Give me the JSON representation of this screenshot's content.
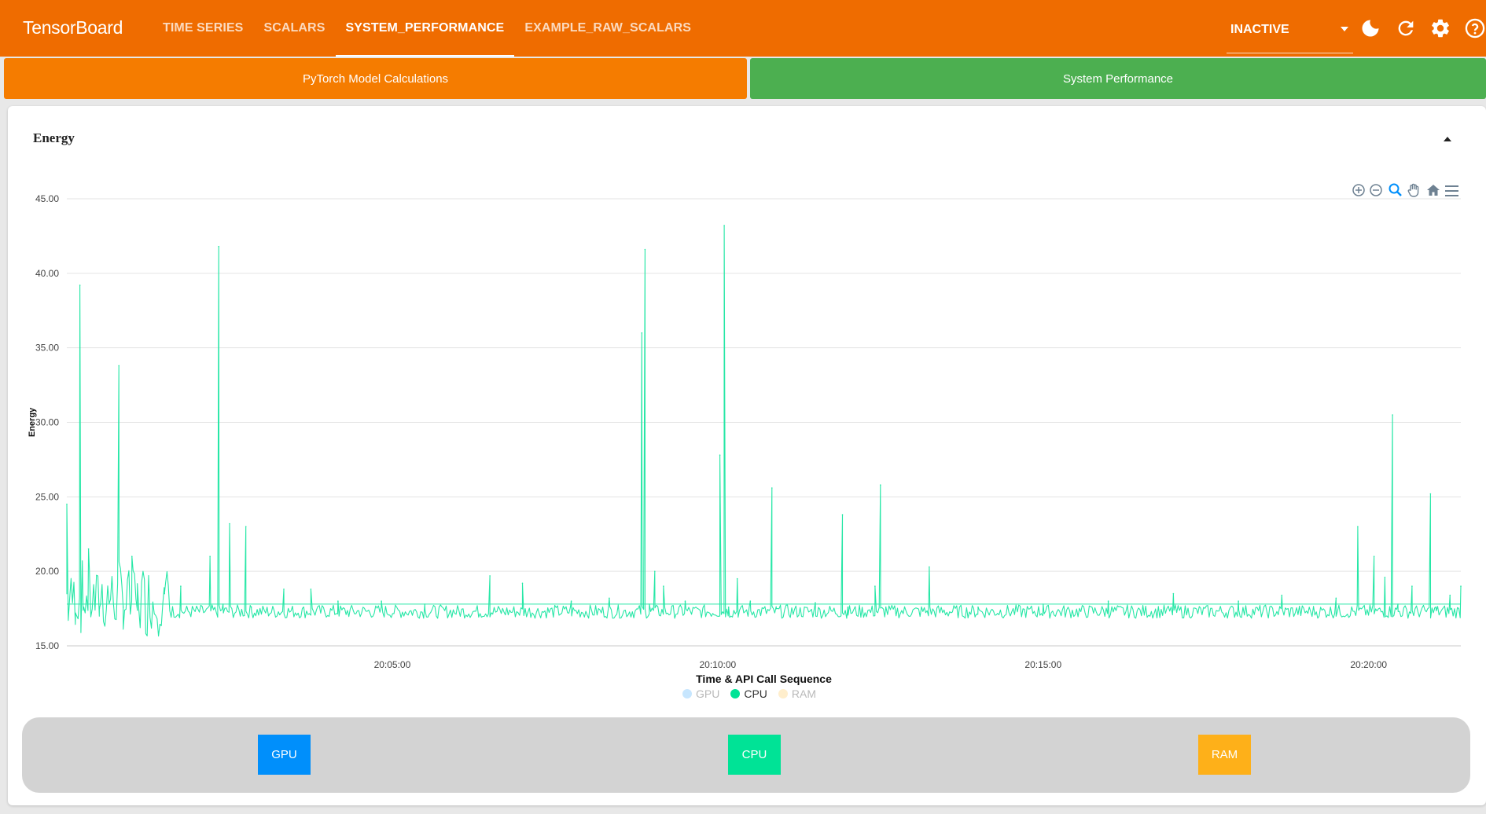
{
  "app": {
    "title": "TensorBoard"
  },
  "nav": {
    "tabs": [
      {
        "label": "TIME SERIES",
        "active": false
      },
      {
        "label": "SCALARS",
        "active": false
      },
      {
        "label": "SYSTEM_PERFORMANCE",
        "active": true
      },
      {
        "label": "EXAMPLE_RAW_SCALARS",
        "active": false
      }
    ]
  },
  "run_selector": {
    "value": "INACTIVE"
  },
  "toolbar_icons": [
    "dark-mode-icon",
    "refresh-icon",
    "settings-icon",
    "help-icon"
  ],
  "section_buttons": {
    "pytorch": "PyTorch Model Calculations",
    "system": "System Performance"
  },
  "card": {
    "title": "Energy"
  },
  "colors": {
    "topbar": "#ef6c00",
    "pytorch": "#f57c00",
    "system": "#4caf50",
    "cpu": "#26e7a6",
    "gpu": "#008ffb",
    "ram": "#feb019"
  },
  "legend": [
    {
      "name": "GPU",
      "color": "#008ffb",
      "active": false
    },
    {
      "name": "CPU",
      "color": "#00e396",
      "active": true
    },
    {
      "name": "RAM",
      "color": "#feb019",
      "active": false
    }
  ],
  "metric_buttons": [
    {
      "label": "GPU",
      "color": "#008ffb"
    },
    {
      "label": "CPU",
      "color": "#00e396"
    },
    {
      "label": "RAM",
      "color": "#feb019"
    }
  ],
  "chart_data": {
    "type": "line",
    "title": "",
    "xlabel": "Time & API Call Sequence",
    "ylabel": "Energy",
    "ylim": [
      15,
      45
    ],
    "yticks": [
      "45.00",
      "40.00",
      "35.00",
      "30.00",
      "25.00",
      "20.00",
      "15.00"
    ],
    "xlim": [
      "20:00:00",
      "20:21:25"
    ],
    "xticks": [
      "20:05:00",
      "20:10:00",
      "20:15:00",
      "20:20:00"
    ],
    "grid": true,
    "legend_position": "bottom",
    "series": [
      {
        "name": "CPU",
        "visible": true,
        "color": "#26e7a6",
        "baseline": 17.3,
        "points": [
          [
            "20:00:00",
            24.5
          ],
          [
            "20:00:08",
            17.2
          ],
          [
            "20:00:12",
            39.2
          ],
          [
            "20:00:15",
            17.4
          ],
          [
            "20:00:20",
            21.5
          ],
          [
            "20:00:30",
            17.5
          ],
          [
            "20:00:48",
            33.8
          ],
          [
            "20:00:52",
            17.6
          ],
          [
            "20:01:00",
            21.0
          ],
          [
            "20:01:05",
            17.4
          ],
          [
            "20:01:30",
            18.5
          ],
          [
            "20:01:45",
            19.0
          ],
          [
            "20:02:12",
            21.0
          ],
          [
            "20:02:20",
            41.8
          ],
          [
            "20:02:24",
            17.8
          ],
          [
            "20:02:30",
            23.2
          ],
          [
            "20:02:45",
            23.0
          ],
          [
            "20:02:50",
            17.6
          ],
          [
            "20:03:20",
            18.8
          ],
          [
            "20:03:45",
            18.8
          ],
          [
            "20:04:10",
            18.0
          ],
          [
            "20:04:50",
            18.0
          ],
          [
            "20:05:30",
            17.8
          ],
          [
            "20:06:30",
            19.7
          ],
          [
            "20:07:00",
            19.2
          ],
          [
            "20:07:45",
            18.0
          ],
          [
            "20:08:20",
            18.2
          ],
          [
            "20:08:50",
            36.0
          ],
          [
            "20:08:53",
            41.6
          ],
          [
            "20:08:57",
            17.8
          ],
          [
            "20:09:02",
            20.0
          ],
          [
            "20:09:10",
            19.0
          ],
          [
            "20:09:30",
            18.0
          ],
          [
            "20:10:02",
            27.8
          ],
          [
            "20:10:06",
            43.2
          ],
          [
            "20:10:10",
            17.6
          ],
          [
            "20:10:18",
            19.5
          ],
          [
            "20:10:30",
            18.0
          ],
          [
            "20:10:50",
            25.6
          ],
          [
            "20:10:54",
            17.5
          ],
          [
            "20:11:30",
            17.9
          ],
          [
            "20:11:55",
            23.8
          ],
          [
            "20:12:00",
            17.6
          ],
          [
            "20:12:25",
            19.0
          ],
          [
            "20:12:30",
            25.8
          ],
          [
            "20:12:35",
            17.6
          ],
          [
            "20:13:15",
            20.3
          ],
          [
            "20:14:00",
            17.6
          ],
          [
            "20:15:00",
            17.8
          ],
          [
            "20:16:00",
            18.0
          ],
          [
            "20:17:00",
            18.5
          ],
          [
            "20:18:00",
            18.0
          ],
          [
            "20:18:40",
            18.4
          ],
          [
            "20:19:30",
            18.2
          ],
          [
            "20:19:50",
            23.0
          ],
          [
            "20:20:05",
            21.0
          ],
          [
            "20:20:15",
            19.6
          ],
          [
            "20:20:22",
            30.5
          ],
          [
            "20:20:27",
            17.8
          ],
          [
            "20:20:40",
            19.0
          ],
          [
            "20:20:57",
            25.2
          ],
          [
            "20:21:02",
            17.6
          ],
          [
            "20:21:15",
            18.4
          ],
          [
            "20:21:25",
            19.0
          ]
        ]
      },
      {
        "name": "GPU",
        "visible": false,
        "points": []
      },
      {
        "name": "RAM",
        "visible": false,
        "points": []
      }
    ]
  }
}
